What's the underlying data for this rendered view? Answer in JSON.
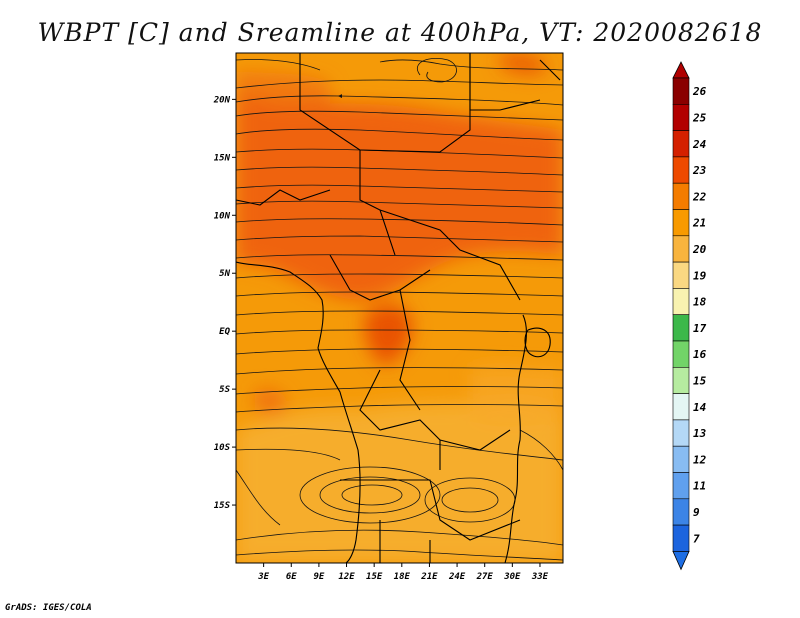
{
  "title": "WBPT [C] and Sreamline at 400hPa, VT: 2020082618",
  "credit": "GrADS: IGES/COLA",
  "map": {
    "lon_range": [
      0,
      35.5
    ],
    "lat_range": [
      -20,
      24
    ],
    "x_ticks": [
      "3E",
      "6E",
      "9E",
      "12E",
      "15E",
      "18E",
      "21E",
      "24E",
      "27E",
      "30E",
      "33E"
    ],
    "x_tick_values": [
      3,
      6,
      9,
      12,
      15,
      18,
      21,
      24,
      27,
      30,
      33
    ],
    "y_ticks": [
      "20N",
      "15N",
      "10N",
      "5N",
      "EQ",
      "5S",
      "10S",
      "15S"
    ],
    "y_tick_values": [
      20,
      15,
      10,
      5,
      0,
      -5,
      -10,
      -15
    ]
  },
  "colorbar": {
    "labels": [
      "26",
      "25",
      "24",
      "23",
      "22",
      "21",
      "20",
      "19",
      "18",
      "17",
      "16",
      "15",
      "14",
      "13",
      "12",
      "11",
      "9",
      "7"
    ],
    "colors": [
      "#8a0000",
      "#b20000",
      "#d42000",
      "#ee4a00",
      "#f47c00",
      "#f89a00",
      "#f8b43e",
      "#fad882",
      "#f8f2b0",
      "#3cb84a",
      "#72d468",
      "#b6eca0",
      "#e4f6f4",
      "#b4d8f6",
      "#88bcf2",
      "#60a0ee",
      "#3c84e6",
      "#1c64de"
    ],
    "top_color": "#b00000",
    "bottom_color": "#1e6ee4"
  }
}
